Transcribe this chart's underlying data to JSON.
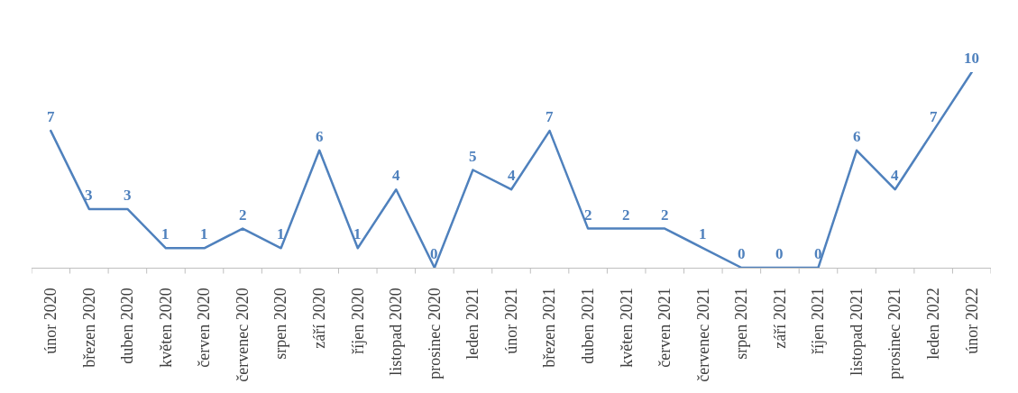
{
  "chart_data": {
    "type": "line",
    "categories": [
      "únor 2020",
      "březen 2020",
      "duben 2020",
      "květen 2020",
      "červen 2020",
      "červenec 2020",
      "srpen 2020",
      "září 2020",
      "říjen 2020",
      "listopad 2020",
      "prosinec 2020",
      "leden 2021",
      "únor 2021",
      "březen 2021",
      "duben 2021",
      "květen 2021",
      "červen 2021",
      "červenec 2021",
      "srpen 2021",
      "září 2021",
      "říjen 2021",
      "listopad 2021",
      "prosinec 2021",
      "leden 2022",
      "únor 2022"
    ],
    "values": [
      7,
      3,
      3,
      1,
      1,
      2,
      1,
      6,
      1,
      4,
      0,
      5,
      4,
      7,
      2,
      2,
      2,
      1,
      0,
      0,
      0,
      6,
      4,
      7,
      10
    ],
    "color": "#4f81bd",
    "data_labels": true,
    "marker": "none",
    "line_style": "solid"
  }
}
